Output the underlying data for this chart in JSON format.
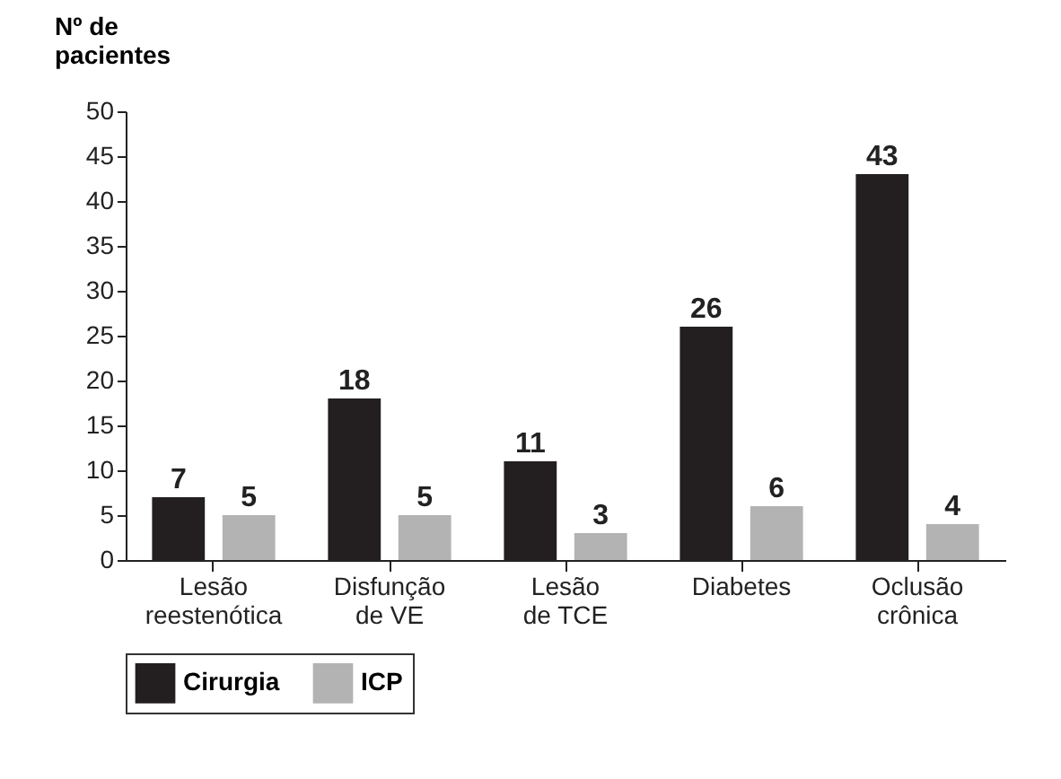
{
  "chart_data": {
    "type": "bar",
    "ylabel": "Nº de pacientes",
    "categories": [
      "Lesão reestenótica",
      "Disfunção de VE",
      "Lesão de TCE",
      "Diabetes",
      "Oclusão crônica"
    ],
    "series": [
      {
        "name": "Cirurgia",
        "color": "#231f20",
        "values": [
          7,
          18,
          11,
          26,
          43
        ]
      },
      {
        "name": "ICP",
        "color": "#b3b3b3",
        "values": [
          5,
          5,
          3,
          6,
          4
        ]
      }
    ],
    "ylim": [
      0,
      50
    ],
    "yticks": [
      0,
      5,
      10,
      15,
      20,
      25,
      30,
      35,
      40,
      45,
      50
    ],
    "grid": false,
    "legend": "bottom",
    "data_labels": true
  }
}
